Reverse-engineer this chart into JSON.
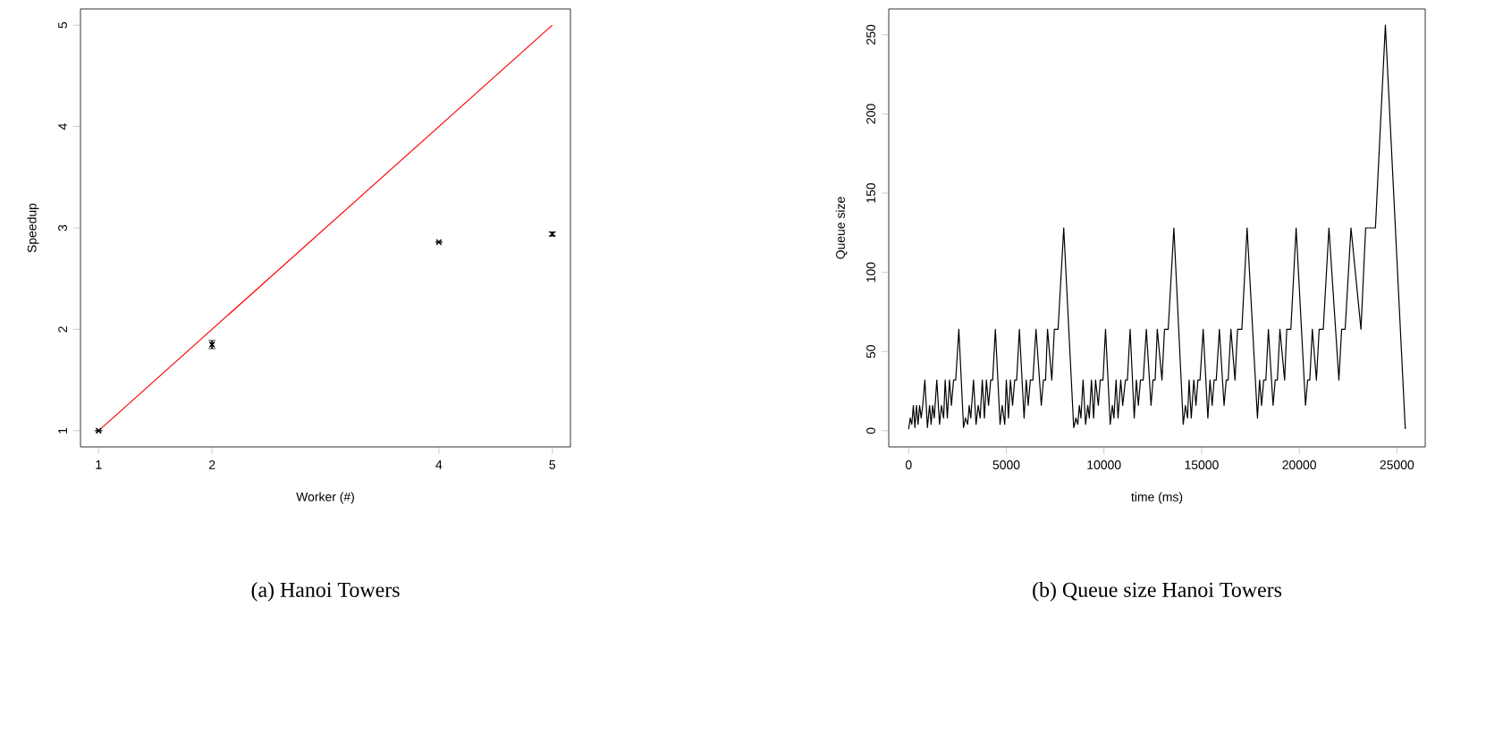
{
  "chart_data": [
    {
      "type": "scatter",
      "title": "(a) Hanoi Towers",
      "xlabel": "Worker (#)",
      "ylabel": "Speedup",
      "xlim": [
        0.84,
        5.16
      ],
      "ylim": [
        0.84,
        5.16
      ],
      "xticks": [
        1,
        2,
        4,
        5
      ],
      "yticks": [
        1,
        2,
        3,
        4,
        5
      ],
      "series": [
        {
          "type": "scatter",
          "marker": "cross",
          "color": "#000000",
          "x": [
            1,
            2,
            4,
            5
          ],
          "values": [
            1.0,
            1.85,
            2.86,
            2.94
          ],
          "errors": [
            null,
            0.04,
            null,
            0.02
          ]
        },
        {
          "type": "line",
          "marker": "none",
          "color": "#ff0000",
          "x": [
            1,
            5
          ],
          "values": [
            1,
            5
          ]
        }
      ]
    },
    {
      "type": "line",
      "title": "(b) Queue size Hanoi Towers",
      "xlabel": "time (ms)",
      "ylabel": "Queue size",
      "xlim": [
        -1020,
        26450
      ],
      "ylim": [
        -10.24,
        266.24
      ],
      "xticks": [
        0,
        5000,
        10000,
        15000,
        20000,
        25000
      ],
      "yticks": [
        0,
        50,
        100,
        150,
        200,
        250
      ],
      "series": [
        {
          "color": "#000000",
          "x": [
            0,
            80,
            160,
            240,
            320,
            400,
            480,
            560,
            640,
            720,
            830,
            960,
            1070,
            1150,
            1230,
            1310,
            1440,
            1580,
            1680,
            1790,
            1870,
            1980,
            2090,
            2190,
            2300,
            2410,
            2570,
            2810,
            2910,
            3020,
            3100,
            3180,
            3320,
            3450,
            3560,
            3660,
            3770,
            3880,
            3980,
            4090,
            4200,
            4300,
            4440,
            4680,
            4790,
            4920,
            5000,
            5110,
            5210,
            5320,
            5430,
            5530,
            5670,
            5910,
            6020,
            6120,
            6230,
            6360,
            6520,
            6790,
            6900,
            7010,
            7110,
            7330,
            7460,
            7650,
            7940,
            8450,
            8500,
            8560,
            8660,
            8740,
            8820,
            8930,
            9060,
            9170,
            9250,
            9360,
            9470,
            9570,
            9710,
            9810,
            9950,
            10080,
            10320,
            10430,
            10510,
            10620,
            10720,
            10860,
            10960,
            11100,
            11200,
            11340,
            11550,
            11660,
            11760,
            11870,
            12010,
            12170,
            12410,
            12510,
            12620,
            12730,
            12970,
            13100,
            13290,
            13580,
            14060,
            14170,
            14280,
            14360,
            14470,
            14600,
            14710,
            14810,
            14920,
            15080,
            15320,
            15430,
            15540,
            15640,
            15750,
            15910,
            16150,
            16260,
            16360,
            16500,
            16710,
            16840,
            17060,
            17330,
            17860,
            17970,
            18070,
            18180,
            18290,
            18420,
            18660,
            18770,
            18880,
            19010,
            19250,
            19360,
            19570,
            19840,
            20320,
            20430,
            20540,
            20670,
            20880,
            21020,
            21230,
            21520,
            22030,
            22170,
            22350,
            22650,
            23160,
            23400,
            23900,
            24410,
            25430
          ],
          "values": [
            1,
            8,
            4,
            16,
            2,
            16,
            4,
            16,
            8,
            16,
            32,
            2,
            16,
            4,
            16,
            8,
            32,
            4,
            16,
            8,
            32,
            8,
            32,
            16,
            32,
            32,
            64,
            2,
            8,
            4,
            16,
            8,
            32,
            4,
            16,
            8,
            32,
            8,
            32,
            16,
            32,
            32,
            64,
            4,
            16,
            4,
            32,
            8,
            32,
            16,
            32,
            32,
            64,
            8,
            32,
            16,
            32,
            32,
            64,
            16,
            32,
            32,
            64,
            32,
            64,
            64,
            128,
            2,
            4,
            8,
            4,
            16,
            8,
            32,
            4,
            16,
            8,
            32,
            8,
            32,
            16,
            32,
            32,
            64,
            4,
            16,
            8,
            32,
            8,
            32,
            16,
            32,
            32,
            64,
            8,
            32,
            16,
            32,
            32,
            64,
            16,
            32,
            32,
            64,
            32,
            64,
            64,
            128,
            4,
            16,
            8,
            32,
            8,
            32,
            16,
            32,
            32,
            64,
            8,
            32,
            16,
            32,
            32,
            64,
            16,
            32,
            32,
            64,
            32,
            64,
            64,
            128,
            8,
            32,
            16,
            32,
            32,
            64,
            16,
            32,
            32,
            64,
            32,
            64,
            64,
            128,
            16,
            32,
            32,
            64,
            32,
            64,
            64,
            128,
            32,
            64,
            64,
            128,
            64,
            128,
            128,
            256,
            1
          ]
        }
      ]
    }
  ]
}
